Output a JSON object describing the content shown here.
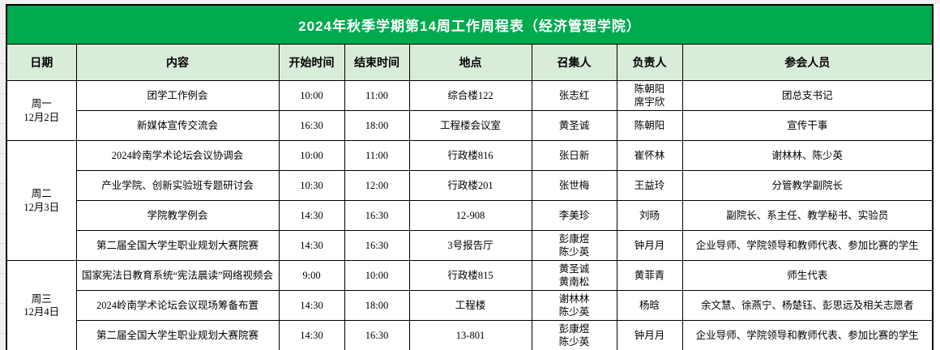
{
  "title": "2024年秋季学期第14周工作周程表（经济管理学院）",
  "colors": {
    "title_bg": "#00AB4E",
    "title_fg": "#FFFFFF",
    "header_bg": "#D9EBD9",
    "border": "#000000",
    "gutter_bg": "#F0F0F0"
  },
  "column_headers": [
    "日期",
    "内容",
    "开始时间",
    "结束时间",
    "地点",
    "召集人",
    "负责人",
    "参会人员"
  ],
  "days": [
    {
      "weekday": "周一",
      "date": "12月2日",
      "events": [
        {
          "content": "团学工作例会",
          "start_time": "10:00",
          "end_time": "11:00",
          "location": "综合楼122",
          "convener": "张志红",
          "leader": "陈朝阳\n席宇欣",
          "participants": "团总支书记"
        },
        {
          "content": "新媒体宣传交流会",
          "start_time": "16:30",
          "end_time": "18:00",
          "location": "工程楼会议室",
          "convener": "黄圣诚",
          "leader": "陈朝阳",
          "participants": "宣传干事"
        }
      ]
    },
    {
      "weekday": "周二",
      "date": "12月3日",
      "events": [
        {
          "content": "2024岭南学术论坛会议协调会",
          "start_time": "10:00",
          "end_time": "11:00",
          "location": "行政楼816",
          "convener": "张日新",
          "leader": "崔怀林",
          "participants": "谢林林、陈少英"
        },
        {
          "content": "产业学院、创新实验班专题研讨会",
          "start_time": "10:30",
          "end_time": "12:00",
          "location": "行政楼201",
          "convener": "张世梅",
          "leader": "王益玲",
          "participants": "分管教学副院长"
        },
        {
          "content": "学院教学例会",
          "start_time": "14:30",
          "end_time": "16:30",
          "location": "12-908",
          "convener": "李美珍",
          "leader": "刘旸",
          "participants": "副院长、系主任、教学秘书、实验员"
        },
        {
          "content": "第二届全国大学生职业规划大赛院赛",
          "start_time": "14:30",
          "end_time": "16:30",
          "location": "3号报告厅",
          "convener": "彭康煜\n陈少英",
          "leader": "钟月月",
          "participants": "企业导师、学院领导和教师代表、参加比赛的学生"
        }
      ]
    },
    {
      "weekday": "周三",
      "date": "12月4日",
      "events": [
        {
          "content": "国家宪法日教育系统“宪法晨读”网络视频会",
          "start_time": "9:00",
          "end_time": "10:00",
          "location": "行政楼815",
          "convener": "黄圣诚\n黄南松",
          "leader": "黄菲青",
          "participants": "师生代表"
        },
        {
          "content": "2024岭南学术论坛会议现场筹备布置",
          "start_time": "14:30",
          "end_time": "18:00",
          "location": "工程楼",
          "convener": "谢林林\n陈少英",
          "leader": "杨晗",
          "participants": "余文慧、徐燕宁、杨楚钰、彭思远及相关志愿者"
        },
        {
          "content": "第二届全国大学生职业规划大赛院赛",
          "start_time": "14:30",
          "end_time": "16:30",
          "location": "13-801",
          "convener": "彭康煜\n陈少英",
          "leader": "钟月月",
          "participants": "企业导师、学院领导和教师代表、参加比赛的学生"
        }
      ]
    }
  ]
}
